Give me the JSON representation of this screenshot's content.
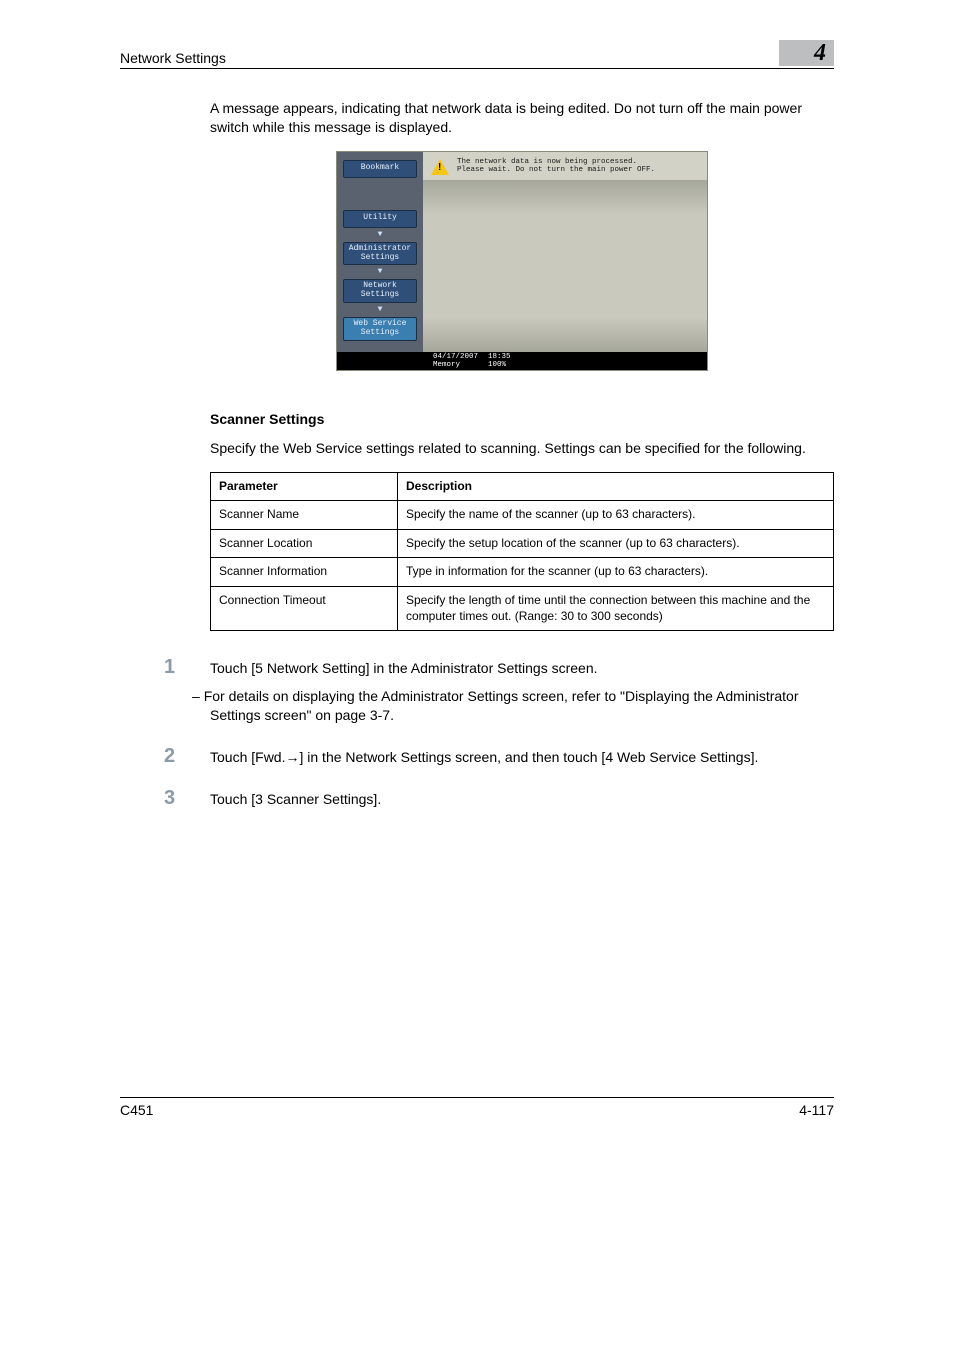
{
  "header": {
    "running_head": "Network Settings",
    "chapter_number": "4"
  },
  "intro_paragraph": "A message appears, indicating that network data is being edited. Do not turn off the main power switch while this message is displayed.",
  "screenshot": {
    "sidebar": {
      "bookmark": "Bookmark",
      "utility": "Utility",
      "admin": "Administrator Settings",
      "network": "Network Settings",
      "web_service": "Web Service Settings"
    },
    "message_line1": "The network data is now being processed.",
    "message_line2": "Please wait. Do not turn the main power OFF.",
    "status": {
      "date": "04/17/2007",
      "time": "18:35",
      "memory_label": "Memory",
      "memory_value": "100%"
    }
  },
  "section_title": "Scanner Settings",
  "section_intro": "Specify the Web Service settings related to scanning. Settings can be specified for the following.",
  "table": {
    "headers": {
      "param": "Parameter",
      "desc": "Description"
    },
    "rows": [
      {
        "param": "Scanner Name",
        "desc": "Specify the name of the scanner (up to 63 characters)."
      },
      {
        "param": "Scanner Location",
        "desc": "Specify the setup location of the scanner (up to 63 characters)."
      },
      {
        "param": "Scanner Information",
        "desc": "Type in information for the scanner (up to 63 characters)."
      },
      {
        "param": "Connection Timeout",
        "desc": "Specify the length of time until the connection between this machine and the computer times out. (Range: 30 to 300 seconds)"
      }
    ]
  },
  "steps": {
    "s1": {
      "num": "1",
      "text": "Touch [5 Network Setting] in the Administrator Settings screen.",
      "sub": "For details on displaying the Administrator Settings screen, refer to \"Displaying the Administrator Settings screen\" on page 3-7."
    },
    "s2": {
      "num": "2",
      "text_a": "Touch [Fwd.",
      "arrow": "→",
      "text_b": "] in the Network Settings screen, and then touch [4 Web Service Settings]."
    },
    "s3": {
      "num": "3",
      "text": "Touch [3 Scanner Settings]."
    }
  },
  "footer": {
    "model": "C451",
    "page": "4-117"
  }
}
